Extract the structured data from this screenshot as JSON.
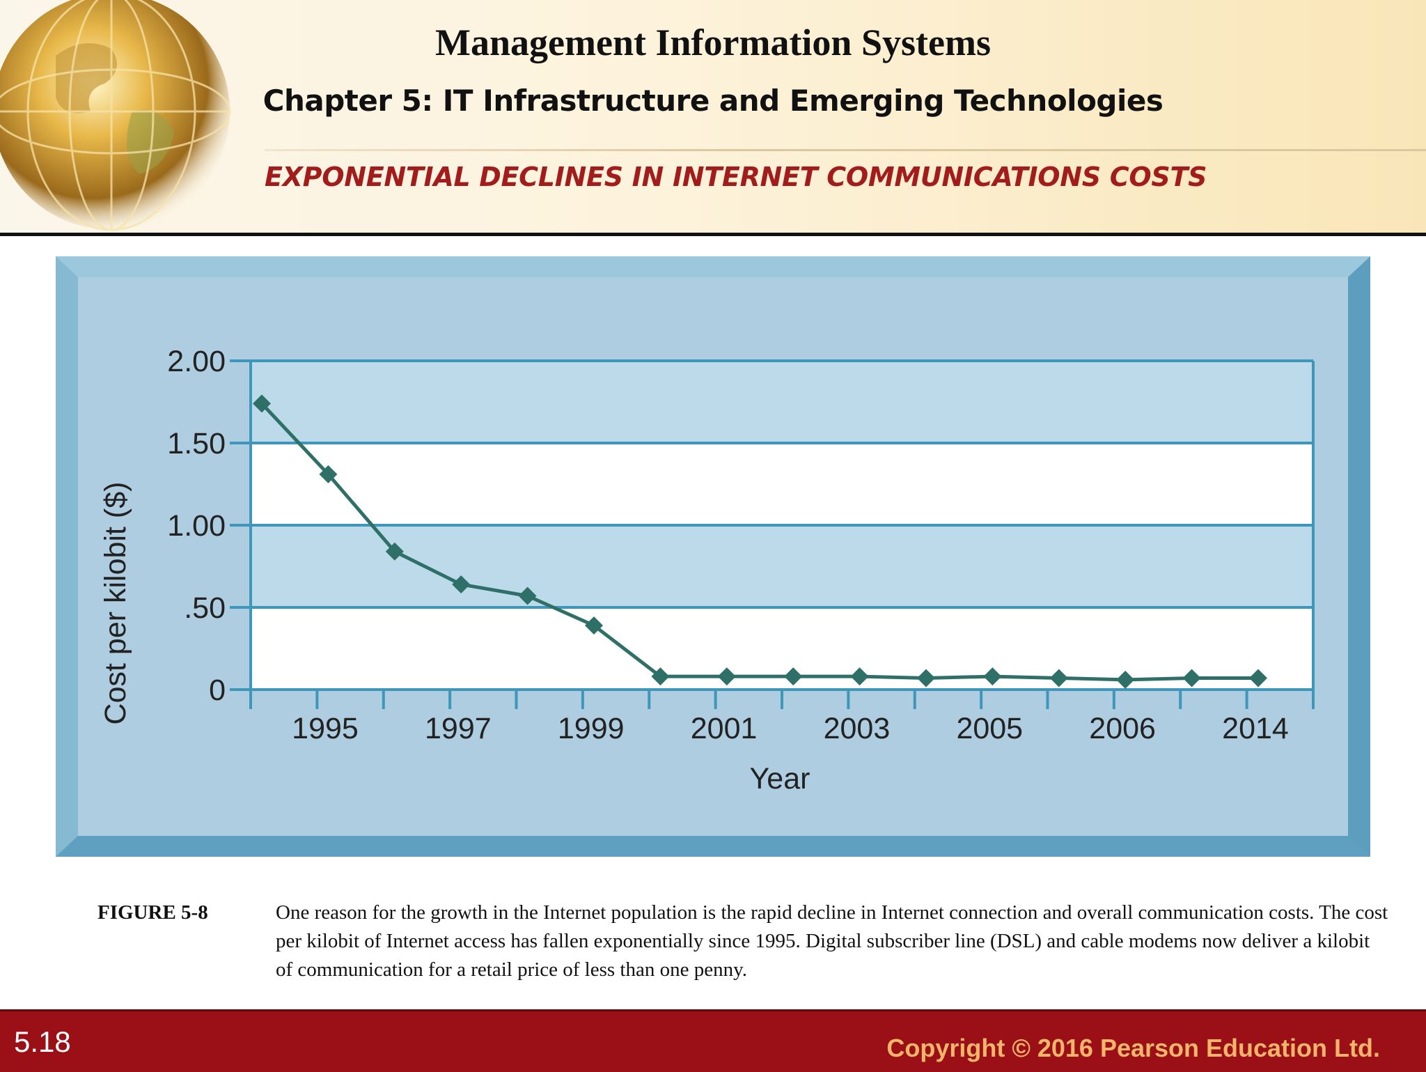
{
  "header": {
    "book_title": "Management Information Systems",
    "chapter_title": "Chapter 5: IT Infrastructure and Emerging Technologies",
    "slide_title": "EXPONENTIAL DECLINES IN INTERNET COMMUNICATIONS COSTS"
  },
  "chart_data": {
    "type": "line",
    "title": "",
    "xlabel": "Year",
    "ylabel": "Cost per kilobit ($)",
    "ylim": [
      0,
      2.0
    ],
    "y_ticks": [
      "0",
      ".50",
      "1.00",
      "1.50",
      "2.00"
    ],
    "x_tick_labels": [
      "1995",
      "1997",
      "1999",
      "2001",
      "2003",
      "2005",
      "2006",
      "2014"
    ],
    "grid": "horizontal bands",
    "marker": "diamond",
    "colors": {
      "line": "#2e7068",
      "band": "#bcdaea",
      "plot_bg": "#ffffff",
      "axis": "#3f96bb",
      "frame_outer": "#73afcb",
      "frame_inner": "#afcde0"
    },
    "series": [
      {
        "values": [
          1.74,
          1.31,
          0.84,
          0.64,
          0.57,
          0.39,
          0.08,
          0.08,
          0.08,
          0.08,
          0.07,
          0.08,
          0.07,
          0.06,
          0.07,
          0.07
        ]
      }
    ]
  },
  "caption": {
    "label": "FIGURE 5-8",
    "text": "One reason for the growth in the Internet population is the rapid decline in Internet connection and overall communication costs. The cost per kilobit of Internet access has fallen exponentially since 1995. Digital subscriber line (DSL) and cable modems now deliver a kilobit of communication for a retail price of less than one penny."
  },
  "footer": {
    "slide_number": "5.18",
    "copyright": "Copyright © 2016 Pearson Education Ltd."
  }
}
